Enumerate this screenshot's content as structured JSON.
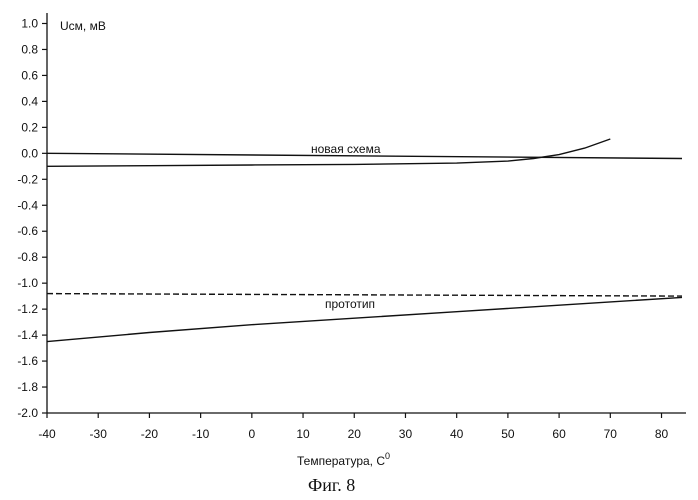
{
  "chart_data": {
    "type": "line",
    "ylabel": "Uсм, мВ",
    "xlabel": "Температура, С",
    "xlabel_superscript": "0",
    "caption": "Фиг. 8",
    "xlim": [
      -40,
      84
    ],
    "ylim": [
      -2.0,
      1.05
    ],
    "x_ticks": [
      -40,
      -30,
      -20,
      -10,
      0,
      10,
      20,
      30,
      40,
      50,
      60,
      70,
      80
    ],
    "y_ticks": [
      "1.0",
      "0.8",
      "0.6",
      "0.4",
      "0.2",
      "0.0",
      "-0.2",
      "-0.4",
      "-0.6",
      "-0.8",
      "-1.0",
      "-1.2",
      "-1.4",
      "-1.6",
      "-1.8",
      "-2.0"
    ],
    "series": [
      {
        "name": "новая схема",
        "style": "solid",
        "points": [
          [
            -40,
            0.0
          ],
          [
            84,
            -0.04
          ]
        ]
      },
      {
        "style": "solid",
        "points": [
          [
            -40,
            -0.1
          ],
          [
            -20,
            -0.095
          ],
          [
            0,
            -0.09
          ],
          [
            20,
            -0.085
          ],
          [
            40,
            -0.075
          ],
          [
            50,
            -0.06
          ],
          [
            55,
            -0.04
          ],
          [
            60,
            -0.01
          ],
          [
            65,
            0.04
          ],
          [
            70,
            0.11
          ]
        ]
      },
      {
        "name": "прототип",
        "style": "dashed",
        "points": [
          [
            -40,
            -1.08
          ],
          [
            84,
            -1.1
          ]
        ]
      },
      {
        "style": "solid",
        "points": [
          [
            -40,
            -1.45
          ],
          [
            -20,
            -1.38
          ],
          [
            0,
            -1.32
          ],
          [
            20,
            -1.27
          ],
          [
            40,
            -1.22
          ],
          [
            60,
            -1.17
          ],
          [
            84,
            -1.11
          ]
        ]
      }
    ]
  }
}
